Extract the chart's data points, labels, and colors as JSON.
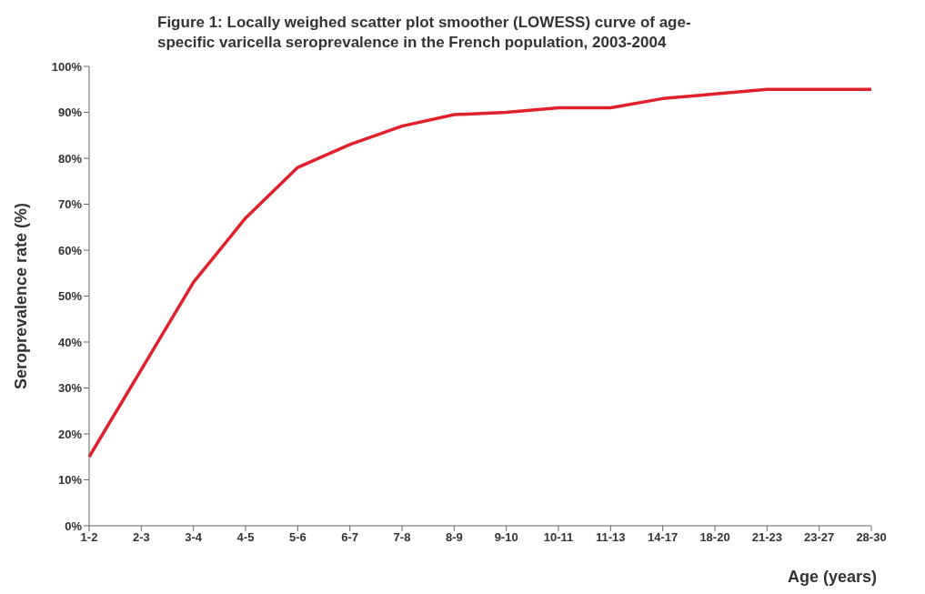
{
  "chart_data": {
    "type": "line",
    "title": "Figure 1: Locally weighed scatter plot smoother (LOWESS) curve of age-specific varicella seroprevalence in the French population, 2003-2004",
    "xlabel": "Age (years)",
    "ylabel": "Seroprevalence rate (%)",
    "categories": [
      "1-2",
      "2-3",
      "3-4",
      "4-5",
      "5-6",
      "6-7",
      "7-8",
      "8-9",
      "9-10",
      "10-11",
      "11-13",
      "14-17",
      "18-20",
      "21-23",
      "23-27",
      "28-30"
    ],
    "series": [
      {
        "color": "#e0202a",
        "values": [
          15,
          34,
          53,
          67,
          78,
          83,
          87,
          89.5,
          90,
          91,
          91,
          93,
          94,
          95,
          95,
          95
        ]
      }
    ],
    "ylim": [
      0,
      100
    ],
    "yticks": [
      {
        "value": 0,
        "label": "0%"
      },
      {
        "value": 10,
        "label": "10%"
      },
      {
        "value": 20,
        "label": "20%"
      },
      {
        "value": 30,
        "label": "30%"
      },
      {
        "value": 40,
        "label": "40%"
      },
      {
        "value": 50,
        "label": "50%"
      },
      {
        "value": 60,
        "label": "60%"
      },
      {
        "value": 70,
        "label": "70%"
      },
      {
        "value": 80,
        "label": "80%"
      },
      {
        "value": 90,
        "label": "90%"
      },
      {
        "value": 100,
        "label": "100%"
      }
    ],
    "grid": false,
    "legend": false,
    "marker": "none",
    "line_style": "solid"
  }
}
